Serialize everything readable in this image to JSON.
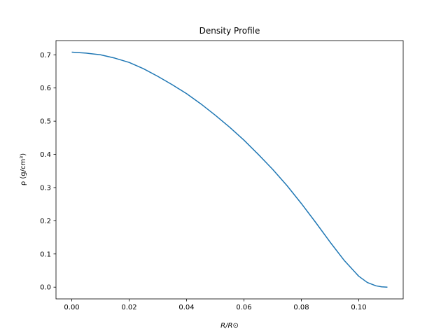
{
  "chart_data": {
    "type": "line",
    "title": "Density Profile",
    "xlabel": "R/R⊙",
    "ylabel": "ρ (g/cm³)",
    "xlim": [
      -0.0055,
      0.1155
    ],
    "ylim": [
      -0.0354,
      0.7428
    ],
    "xticks": [
      0.0,
      0.02,
      0.04,
      0.06,
      0.08,
      0.1
    ],
    "xtick_labels": [
      "0.00",
      "0.02",
      "0.04",
      "0.06",
      "0.08",
      "0.10"
    ],
    "yticks": [
      0.0,
      0.1,
      0.2,
      0.3,
      0.4,
      0.5,
      0.6,
      0.7
    ],
    "ytick_labels": [
      "0.0",
      "0.1",
      "0.2",
      "0.3",
      "0.4",
      "0.5",
      "0.6",
      "0.7"
    ],
    "grid": false,
    "color": "#1f77b4",
    "series": [
      {
        "x": [
          0.0,
          0.005,
          0.01,
          0.015,
          0.02,
          0.025,
          0.03,
          0.035,
          0.04,
          0.045,
          0.05,
          0.055,
          0.06,
          0.065,
          0.07,
          0.075,
          0.08,
          0.085,
          0.09,
          0.095,
          0.1,
          0.103,
          0.106,
          0.108,
          0.11
        ],
        "y": [
          0.708,
          0.705,
          0.7,
          0.69,
          0.677,
          0.658,
          0.635,
          0.61,
          0.583,
          0.552,
          0.518,
          0.482,
          0.443,
          0.4,
          0.355,
          0.306,
          0.252,
          0.195,
          0.136,
          0.08,
          0.033,
          0.014,
          0.004,
          0.001,
          0.0
        ]
      }
    ]
  }
}
